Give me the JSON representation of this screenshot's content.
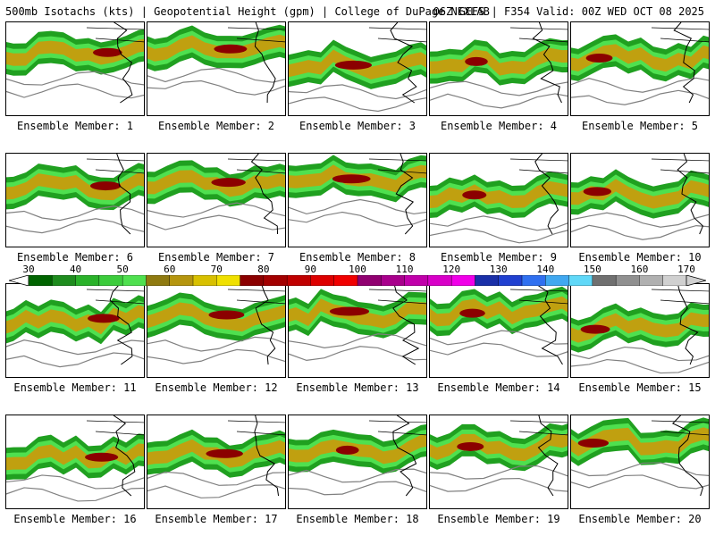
{
  "header": {
    "left": "500mb Isotachs (kts) | Geopotential Height (gpm) | College of DuPage NEXLAB",
    "right": "06Z GEFS | F354 Valid: 00Z WED OCT 08 2025"
  },
  "legend": {
    "ticks": [
      "30",
      "40",
      "50",
      "60",
      "70",
      "80",
      "90",
      "100",
      "110",
      "120",
      "130",
      "140",
      "150",
      "160",
      "170"
    ],
    "colors": [
      "#006400",
      "#1e8c1e",
      "#2ab22a",
      "#3ccc3c",
      "#4fe04f",
      "#8f7a10",
      "#b5950e",
      "#d8c000",
      "#f0e000",
      "#8b0000",
      "#a30000",
      "#c00000",
      "#dd0000",
      "#f00000",
      "#900070",
      "#a8008c",
      "#c000aa",
      "#d800c8",
      "#f000e8",
      "#1a2fa8",
      "#2040d0",
      "#3070f0",
      "#40a8f0",
      "#60d8f8",
      "#707070",
      "#909090",
      "#b0b0b0",
      "#d0d0d0"
    ]
  },
  "members": [
    {
      "label": "Ensemble Member: 1"
    },
    {
      "label": "Ensemble Member: 2"
    },
    {
      "label": "Ensemble Member: 3"
    },
    {
      "label": "Ensemble Member: 4"
    },
    {
      "label": "Ensemble Member: 5"
    },
    {
      "label": "Ensemble Member: 6"
    },
    {
      "label": "Ensemble Member: 7"
    },
    {
      "label": "Ensemble Member: 8"
    },
    {
      "label": "Ensemble Member: 9"
    },
    {
      "label": "Ensemble Member: 10"
    },
    {
      "label": "Ensemble Member: 11"
    },
    {
      "label": "Ensemble Member: 12"
    },
    {
      "label": "Ensemble Member: 13"
    },
    {
      "label": "Ensemble Member: 14"
    },
    {
      "label": "Ensemble Member: 15"
    },
    {
      "label": "Ensemble Member: 16"
    },
    {
      "label": "Ensemble Member: 17"
    },
    {
      "label": "Ensemble Member: 18"
    },
    {
      "label": "Ensemble Member: 19"
    },
    {
      "label": "Ensemble Member: 20"
    }
  ],
  "colors": {
    "jet_green": "#20a020",
    "jet_light": "#4fe04f",
    "jet_gold": "#c0a010",
    "jet_core": "#8b0000",
    "height_contour": "#808080",
    "coast": "#000000"
  }
}
